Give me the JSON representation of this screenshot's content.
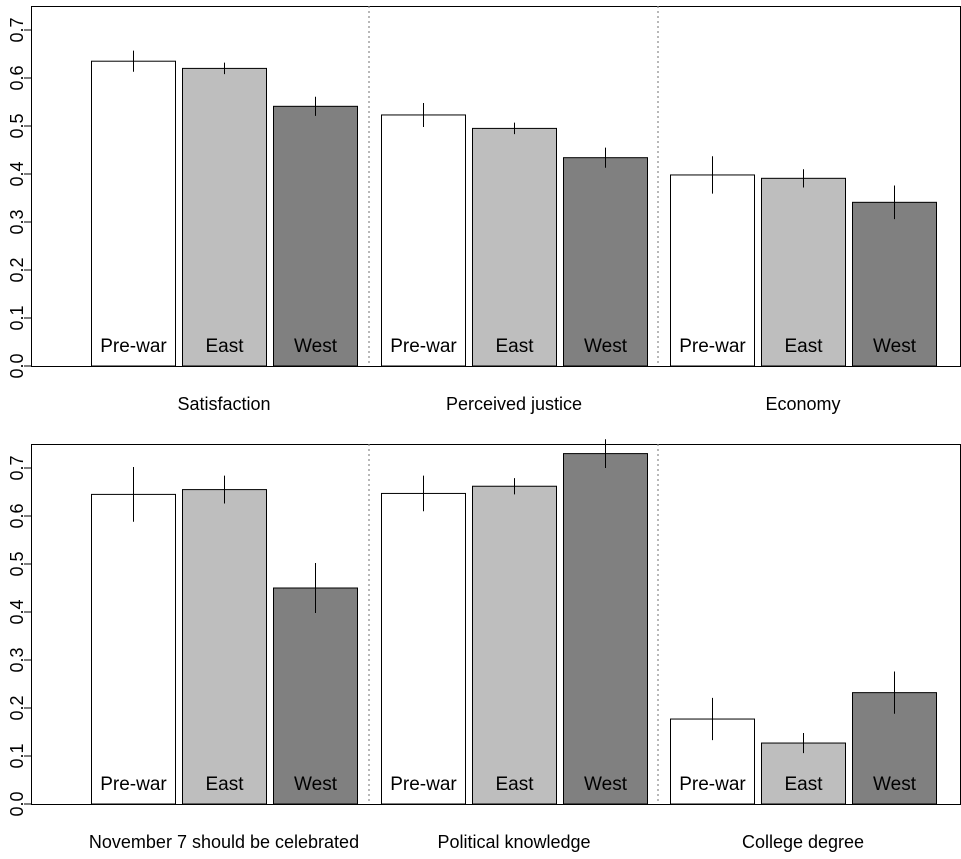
{
  "chart_data": [
    {
      "type": "bar",
      "ylim": [
        0,
        0.75
      ],
      "yticks": [
        "0.0",
        "0.1",
        "0.2",
        "0.3",
        "0.4",
        "0.5",
        "0.6",
        "0.7"
      ],
      "series_names": [
        "Pre-war",
        "East",
        "West"
      ],
      "colors": [
        "#ffffff",
        "#bebebe",
        "#808080"
      ],
      "groups": [
        {
          "label": "Satisfaction",
          "values": [
            0.635,
            0.62,
            0.541
          ],
          "err_low": [
            0.613,
            0.608,
            0.521
          ],
          "err_high": [
            0.657,
            0.632,
            0.561
          ]
        },
        {
          "label": "Perceived justice",
          "values": [
            0.523,
            0.495,
            0.434
          ],
          "err_low": [
            0.498,
            0.483,
            0.413
          ],
          "err_high": [
            0.548,
            0.507,
            0.455
          ]
        },
        {
          "label": "Economy",
          "values": [
            0.398,
            0.391,
            0.341
          ],
          "err_low": [
            0.359,
            0.372,
            0.306
          ],
          "err_high": [
            0.437,
            0.41,
            0.376
          ]
        }
      ]
    },
    {
      "type": "bar",
      "ylim": [
        0,
        0.75
      ],
      "yticks": [
        "0.0",
        "0.1",
        "0.2",
        "0.3",
        "0.4",
        "0.5",
        "0.6",
        "0.7"
      ],
      "series_names": [
        "Pre-war",
        "East",
        "West"
      ],
      "colors": [
        "#ffffff",
        "#bebebe",
        "#808080"
      ],
      "groups": [
        {
          "label": "November 7 should be celebrated",
          "values": [
            0.645,
            0.655,
            0.45
          ],
          "err_low": [
            0.588,
            0.626,
            0.398
          ],
          "err_high": [
            0.702,
            0.684,
            0.502
          ]
        },
        {
          "label": "Political knowledge",
          "values": [
            0.647,
            0.662,
            0.73
          ],
          "err_low": [
            0.61,
            0.645,
            0.7
          ],
          "err_high": [
            0.684,
            0.679,
            0.76
          ]
        },
        {
          "label": "College degree",
          "values": [
            0.177,
            0.127,
            0.232
          ],
          "err_low": [
            0.133,
            0.106,
            0.188
          ],
          "err_high": [
            0.221,
            0.148,
            0.276
          ]
        }
      ]
    }
  ]
}
